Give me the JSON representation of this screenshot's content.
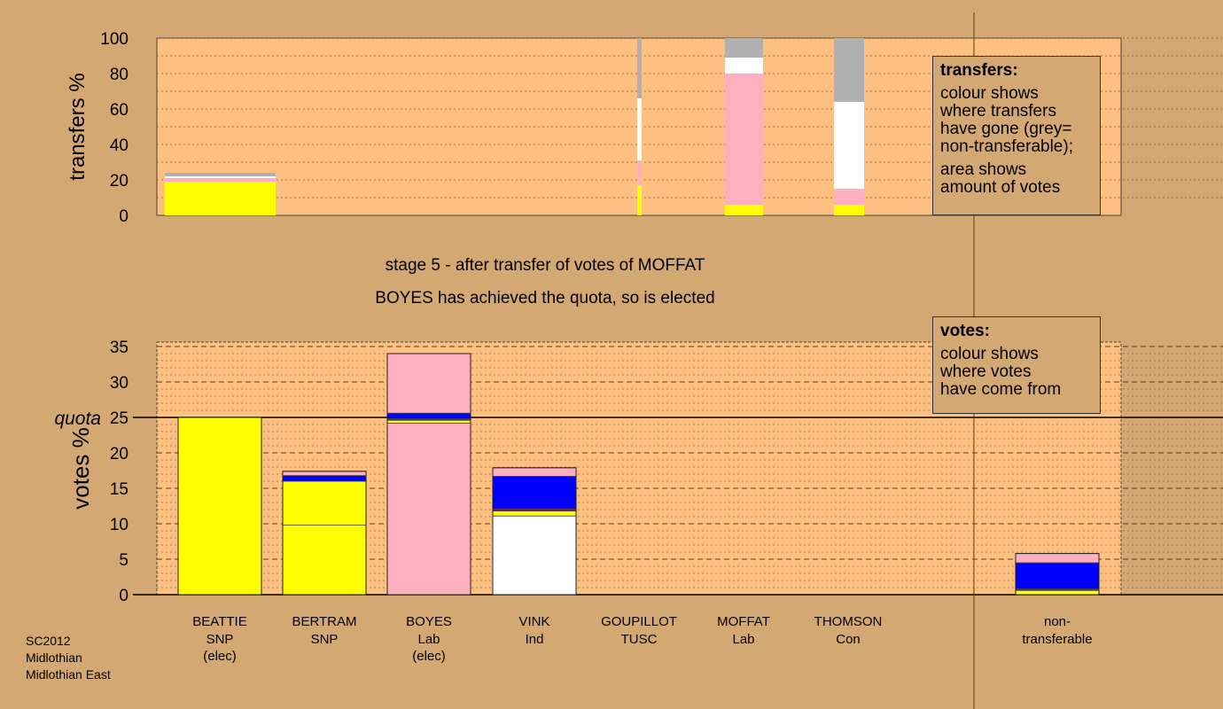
{
  "stage_text": "stage 5 - after transfer of votes of MOFFAT",
  "elected_text": "BOYES has achieved the quota, so is elected",
  "footer": [
    "SC2012",
    "Midlothian",
    "Midlothian East"
  ],
  "legend_transfers": {
    "title": "transfers:",
    "lines1": [
      "colour shows",
      "where transfers",
      "have gone (grey=",
      "non-transferable);"
    ],
    "lines2": [
      "area shows",
      "amount of votes"
    ]
  },
  "legend_votes": {
    "title": "votes:",
    "lines": [
      "colour shows",
      "where votes",
      "have come from"
    ]
  },
  "colors": {
    "SNP": "#ffff00",
    "Lab": "#ffb0c0",
    "Ind": "#ffffff",
    "Con": "#0000ff",
    "TUSC": "#c0003c",
    "nontransferable": "#b0b0b0",
    "background": "#d4a872",
    "plot": "#fdc080"
  },
  "chart_data": [
    {
      "type": "bar",
      "stacked": true,
      "ylabel": "transfers %",
      "ylim": [
        0,
        100
      ],
      "yticks": [
        0,
        20,
        40,
        60,
        80,
        100
      ],
      "bars": [
        {
          "segments": [
            {
              "party": "SNP",
              "value": 19
            },
            {
              "party": "Lab",
              "value": 2
            },
            {
              "party": "Ind",
              "value": 1
            },
            {
              "party": "nontransferable",
              "value": 2
            }
          ]
        },
        {
          "segments": [
            {
              "party": "SNP",
              "value": 17
            },
            {
              "party": "Lab",
              "value": 14
            },
            {
              "party": "Ind",
              "value": 35
            },
            {
              "party": "nontransferable",
              "value": 34
            }
          ]
        },
        {
          "segments": [
            {
              "party": "SNP",
              "value": 6
            },
            {
              "party": "Lab",
              "value": 74
            },
            {
              "party": "Ind",
              "value": 9
            },
            {
              "party": "nontransferable",
              "value": 11
            }
          ]
        },
        {
          "segments": [
            {
              "party": "SNP",
              "value": 6
            },
            {
              "party": "Lab",
              "value": 9
            },
            {
              "party": "Ind",
              "value": 49
            },
            {
              "party": "nontransferable",
              "value": 36
            }
          ]
        }
      ]
    },
    {
      "type": "bar",
      "stacked": true,
      "ylabel": "votes %",
      "ylim": [
        0,
        35
      ],
      "yticks": [
        0,
        5,
        10,
        15,
        20,
        25,
        30,
        35
      ],
      "quota": 25,
      "quota_label": "quota",
      "categories": [
        {
          "name": "BEATTIE",
          "party": "SNP",
          "note": "(elec)"
        },
        {
          "name": "BERTRAM",
          "party": "SNP",
          "note": ""
        },
        {
          "name": "BOYES",
          "party": "Lab",
          "note": "(elec)"
        },
        {
          "name": "VINK",
          "party": "Ind",
          "note": ""
        },
        {
          "name": "GOUPILLOT",
          "party": "TUSC",
          "note": ""
        },
        {
          "name": "MOFFAT",
          "party": "Lab",
          "note": ""
        },
        {
          "name": "THOMSON",
          "party": "Con",
          "note": ""
        },
        {
          "name": "non-",
          "party": "transferable",
          "note": ""
        }
      ],
      "bars": [
        {
          "segments": [
            {
              "party": "SNP",
              "value": 25
            }
          ]
        },
        {
          "segments": [
            {
              "party": "SNP",
              "value": 9.8
            },
            {
              "party": "SNP",
              "value": 6.2
            },
            {
              "party": "Con",
              "value": 0.8
            },
            {
              "party": "Lab",
              "value": 0.6
            }
          ]
        },
        {
          "segments": [
            {
              "party": "Lab",
              "value": 24.2
            },
            {
              "party": "SNP",
              "value": 0.4
            },
            {
              "party": "TUSC",
              "value": 0.2
            },
            {
              "party": "Con",
              "value": 0.8
            },
            {
              "party": "Lab",
              "value": 8.4
            }
          ]
        },
        {
          "segments": [
            {
              "party": "Ind",
              "value": 11.1
            },
            {
              "party": "SNP",
              "value": 0.7
            },
            {
              "party": "TUSC",
              "value": 0.3
            },
            {
              "party": "Con",
              "value": 4.6
            },
            {
              "party": "Lab",
              "value": 1.2
            }
          ]
        },
        {
          "segments": []
        },
        {
          "segments": []
        },
        {
          "segments": []
        },
        {
          "segments": [
            {
              "party": "SNP",
              "value": 0.6
            },
            {
              "party": "TUSC",
              "value": 0.2
            },
            {
              "party": "Con",
              "value": 3.7
            },
            {
              "party": "Lab",
              "value": 1.3
            }
          ]
        }
      ]
    }
  ]
}
